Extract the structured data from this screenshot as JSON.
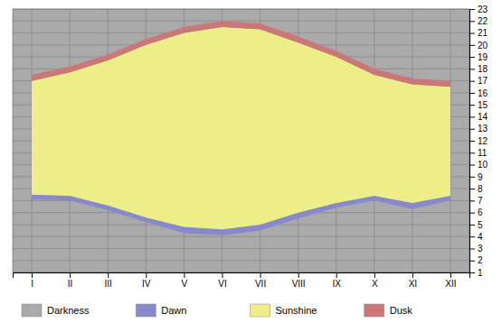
{
  "chart_data": {
    "type": "range_area",
    "categories": [
      "I",
      "II",
      "III",
      "IV",
      "V",
      "VI",
      "VII",
      "VIII",
      "IX",
      "X",
      "XI",
      "XII"
    ],
    "series": [
      {
        "name": "Darkness",
        "color": "#aaaaaa"
      },
      {
        "name": "Dawn",
        "color": "#8888cc",
        "low": [
          7.1,
          7.0,
          6.2,
          5.2,
          4.3,
          4.1,
          4.5,
          5.5,
          6.4,
          7.0,
          6.3,
          7.0
        ],
        "high": [
          7.5,
          7.4,
          6.6,
          5.6,
          4.8,
          4.6,
          5.0,
          6.0,
          6.8,
          7.4,
          6.8,
          7.4
        ]
      },
      {
        "name": "Sunshine",
        "color": "#eeee88",
        "low": [
          7.5,
          7.4,
          6.6,
          5.6,
          4.8,
          4.6,
          5.0,
          6.0,
          6.8,
          7.4,
          6.8,
          7.4
        ],
        "high": [
          17.0,
          17.7,
          18.7,
          20.0,
          21.0,
          21.5,
          21.3,
          20.2,
          19.0,
          17.5,
          16.7,
          16.5
        ]
      },
      {
        "name": "Dusk",
        "color": "#cc7777",
        "low": [
          17.0,
          17.7,
          18.7,
          20.0,
          21.0,
          21.5,
          21.3,
          20.2,
          19.0,
          17.5,
          16.7,
          16.5
        ],
        "high": [
          17.5,
          18.2,
          19.2,
          20.5,
          21.5,
          22.0,
          21.8,
          20.7,
          19.5,
          18.0,
          17.2,
          17.0
        ]
      }
    ],
    "ylim": [
      1,
      23
    ],
    "yticks": [
      1,
      2,
      3,
      4,
      5,
      6,
      7,
      8,
      9,
      10,
      11,
      12,
      13,
      14,
      15,
      16,
      17,
      18,
      19,
      20,
      21,
      22,
      23
    ],
    "grid": true
  }
}
